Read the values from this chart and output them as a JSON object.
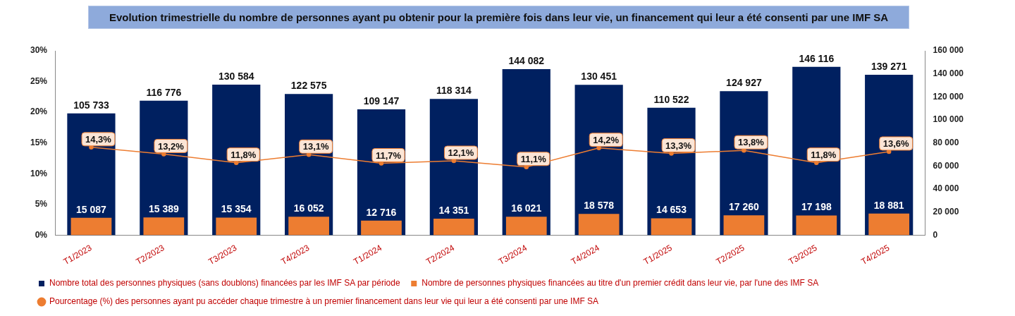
{
  "chart_data": {
    "type": "bar",
    "title": "Evolution trimestrielle du nombre de personnes ayant pu obtenir pour la première fois dans leur vie, un financement qui leur a été consenti par une IMF SA",
    "categories": [
      "T1/2023",
      "T2/2023",
      "T3/2023",
      "T4/2023",
      "T1/2024",
      "T2/2024",
      "T3/2024",
      "T4/2024",
      "T1/2025",
      "T2/2025",
      "T3/2025",
      "T4/2025"
    ],
    "series": [
      {
        "name": "Nombre total des personnes physiques (sans doublons) financées par les IMF SA par période",
        "axis": "y2",
        "color": "#002060",
        "values": [
          105733,
          116776,
          130584,
          122575,
          109147,
          118314,
          144082,
          130451,
          110522,
          124927,
          146116,
          139271
        ],
        "value_labels": [
          "105 733",
          "116 776",
          "130 584",
          "122 575",
          "109 147",
          "118 314",
          "144 082",
          "130 451",
          "110 522",
          "124 927",
          "146 116",
          "139 271"
        ]
      },
      {
        "name": "Nombre de personnes physiques financées au titre d'un premier crédit dans leur vie, par l'une des IMF SA",
        "axis": "y2",
        "color": "#ed7d31",
        "values": [
          15087,
          15389,
          15354,
          16052,
          12716,
          14351,
          16021,
          18578,
          14653,
          17260,
          17198,
          18881
        ],
        "value_labels": [
          "15 087",
          "15 389",
          "15 354",
          "16 052",
          "12 716",
          "14 351",
          "16 021",
          "18 578",
          "14 653",
          "17 260",
          "17 198",
          "18 881"
        ]
      },
      {
        "name": "Pourcentage (%) des personnes ayant pu accéder chaque trimestre à un premier financement dans leur vie qui leur a été consenti par une IMF SA",
        "type": "line",
        "axis": "y",
        "color": "#ed7d31",
        "values": [
          14.3,
          13.2,
          11.8,
          13.1,
          11.7,
          12.1,
          11.1,
          14.2,
          13.3,
          13.8,
          11.8,
          13.6
        ],
        "value_labels": [
          "14,3%",
          "13,2%",
          "11,8%",
          "13,1%",
          "11,7%",
          "12,1%",
          "11,1%",
          "14,2%",
          "13,3%",
          "13,8%",
          "11,8%",
          "13,6%"
        ]
      }
    ],
    "ylim": [
      0,
      30
    ],
    "yticks": [
      {
        "value": 0,
        "label": "0%"
      },
      {
        "value": 5,
        "label": "5%"
      },
      {
        "value": 10,
        "label": "10%"
      },
      {
        "value": 15,
        "label": "15%"
      },
      {
        "value": 20,
        "label": "20%"
      },
      {
        "value": 25,
        "label": "25%"
      },
      {
        "value": 30,
        "label": "30%"
      }
    ],
    "y2lim": [
      0,
      160000
    ],
    "y2ticks": [
      0,
      {
        "value": 20000,
        "label": "20 000"
      },
      {
        "value": 40000,
        "label": "40 000"
      },
      {
        "value": 60000,
        "label": "60 000"
      },
      {
        "value": 80000,
        "label": "80 000"
      },
      {
        "value": 100000,
        "label": "100 000"
      },
      {
        "value": 120000,
        "label": "120 000"
      },
      {
        "value": 140000,
        "label": "140 000"
      },
      {
        "value": 160000,
        "label": "160 000"
      }
    ],
    "legend": "bottom",
    "marker": "circle"
  }
}
